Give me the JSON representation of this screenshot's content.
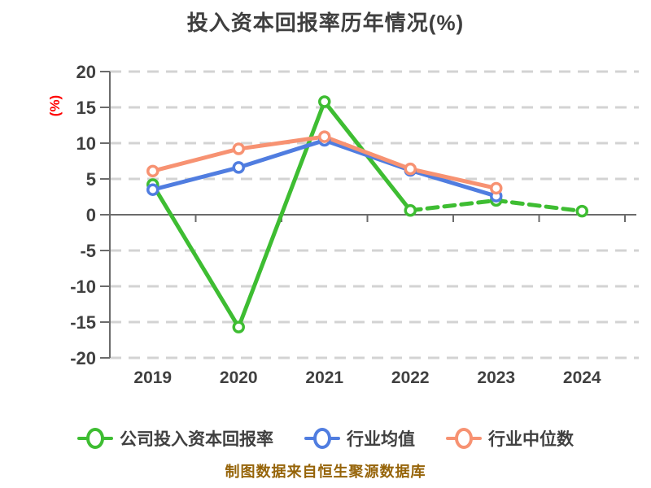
{
  "header": {
    "title": "投入资本回报率历年情况(%)"
  },
  "chart_data": {
    "type": "line",
    "title": "投入资本回报率历年情况(%)",
    "xlabel": "",
    "ylabel": "(%)",
    "ylabel_color": "#FF0000",
    "categories": [
      "2019",
      "2020",
      "2021",
      "2022",
      "2023",
      "2024"
    ],
    "series": [
      {
        "name": "公司投入资本回报率",
        "color": "#3EBD32",
        "values": [
          4.2,
          -15.7,
          15.8,
          0.6,
          2.0,
          0.5
        ],
        "dashed_from_index": 3
      },
      {
        "name": "行业均值",
        "color": "#507DE0",
        "values": [
          3.5,
          6.6,
          10.4,
          6.2,
          2.6,
          null
        ],
        "dashed_from_index": null
      },
      {
        "name": "行业中位数",
        "color": "#F79272",
        "values": [
          6.1,
          9.2,
          10.9,
          6.4,
          3.7,
          null
        ],
        "dashed_from_index": null
      }
    ],
    "ylim": [
      -20,
      20
    ],
    "yticks": [
      -20,
      -15,
      -10,
      -5,
      0,
      5,
      10,
      15,
      20
    ],
    "grid": "horizontal-dashed",
    "grid_color": "#D3D3D3",
    "axis_color": "#6B6B6B",
    "tick_label_color": "#404040",
    "legend_position": "bottom",
    "marker": "circle-white-fill"
  },
  "footer": {
    "caption": "制图数据来自恒生聚源数据库"
  }
}
